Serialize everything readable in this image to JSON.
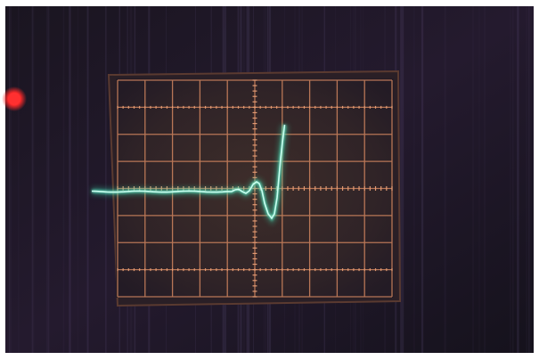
{
  "photo": {
    "subject": "oscilloscope-screen",
    "colors": {
      "border": "#ffffff",
      "background": "#1d1726",
      "graticule": "#d1855f",
      "screen_glow": "#3b2d2a",
      "trace": "#8ff2d6",
      "trace_glow": "#36d1a8",
      "indicator_lamp": "#ff2a2a"
    },
    "graticule": {
      "major_columns": 10,
      "major_rows": 8
    }
  }
}
